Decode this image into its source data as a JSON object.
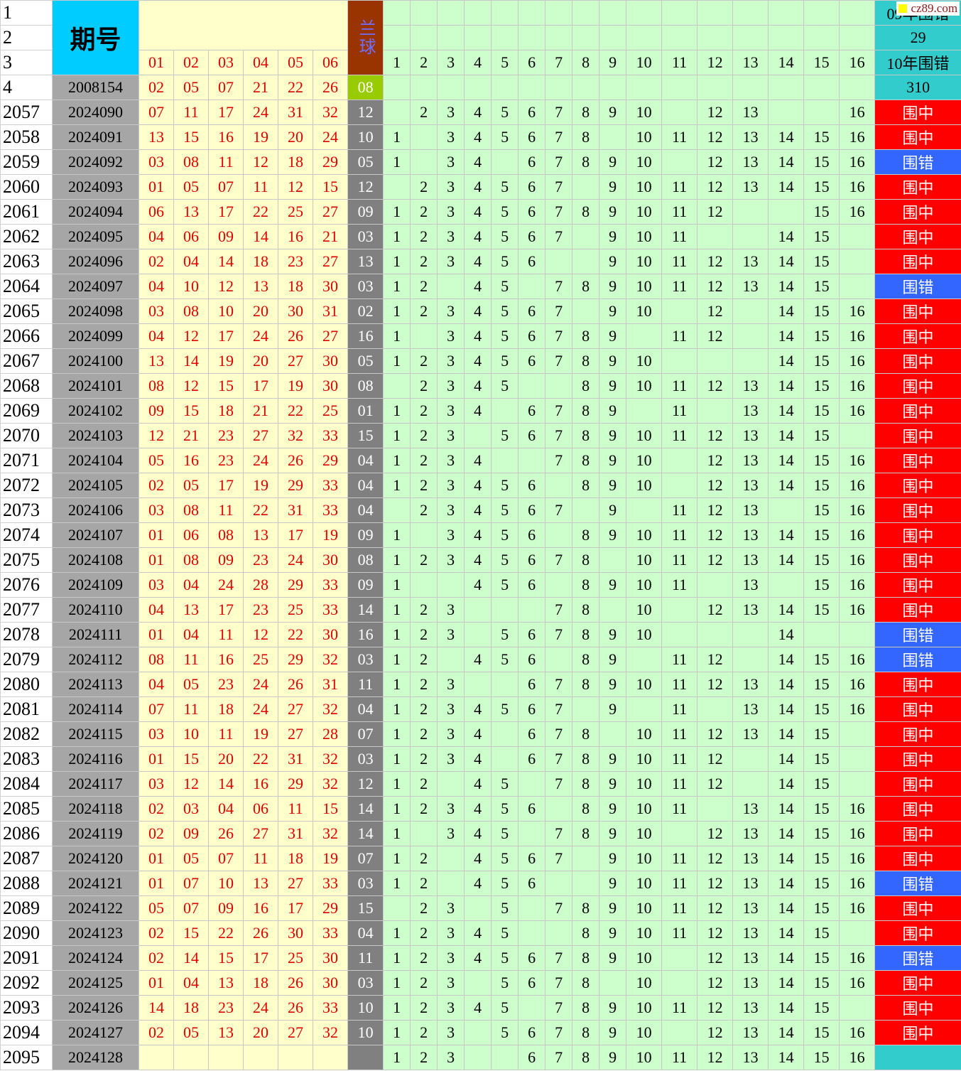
{
  "header": {
    "row_numbers": [
      1,
      2,
      3,
      4
    ],
    "period_label": "期号",
    "blue_label": "兰球",
    "red_columns": [
      "01",
      "02",
      "03",
      "04",
      "05",
      "06"
    ],
    "number_columns": [
      1,
      2,
      3,
      4,
      5,
      6,
      7,
      8,
      9,
      10,
      11,
      12,
      13,
      14,
      15,
      16
    ],
    "result_labels": [
      "09年围错",
      29,
      "10年围错",
      310
    ],
    "watermark": "cz89.com"
  },
  "reference_row": {
    "period": "2008154",
    "reds": [
      "02",
      "05",
      "07",
      "21",
      "22",
      "26"
    ],
    "blue": "08"
  },
  "rows": [
    {
      "row": 2057,
      "period": "2024090",
      "reds": [
        "07",
        "11",
        "17",
        "24",
        "31",
        "32"
      ],
      "blue": "12",
      "numbers": [
        2,
        3,
        4,
        5,
        6,
        7,
        8,
        9,
        10,
        12,
        13,
        16
      ],
      "result": "围中",
      "result_color": "#ff0000"
    },
    {
      "row": 2058,
      "period": "2024091",
      "reds": [
        "13",
        "15",
        "16",
        "19",
        "20",
        "24"
      ],
      "blue": "10",
      "numbers": [
        1,
        3,
        4,
        5,
        6,
        7,
        8,
        10,
        11,
        12,
        13,
        14,
        15,
        16
      ],
      "result": "围中",
      "result_color": "#ff0000"
    },
    {
      "row": 2059,
      "period": "2024092",
      "reds": [
        "03",
        "08",
        "11",
        "12",
        "18",
        "29"
      ],
      "blue": "05",
      "numbers": [
        1,
        3,
        4,
        6,
        7,
        8,
        9,
        10,
        12,
        13,
        14,
        15,
        16
      ],
      "result": "围错",
      "result_color": "#3366ff"
    },
    {
      "row": 2060,
      "period": "2024093",
      "reds": [
        "01",
        "05",
        "07",
        "11",
        "12",
        "15"
      ],
      "blue": "12",
      "numbers": [
        2,
        3,
        4,
        5,
        6,
        7,
        9,
        10,
        11,
        12,
        13,
        14,
        15,
        16
      ],
      "result": "围中",
      "result_color": "#ff0000"
    },
    {
      "row": 2061,
      "period": "2024094",
      "reds": [
        "06",
        "13",
        "17",
        "22",
        "25",
        "27"
      ],
      "blue": "09",
      "numbers": [
        1,
        2,
        3,
        4,
        5,
        6,
        7,
        8,
        9,
        10,
        11,
        12,
        15,
        16
      ],
      "result": "围中",
      "result_color": "#ff0000"
    },
    {
      "row": 2062,
      "period": "2024095",
      "reds": [
        "04",
        "06",
        "09",
        "14",
        "16",
        "21"
      ],
      "blue": "03",
      "numbers": [
        1,
        2,
        3,
        4,
        5,
        6,
        7,
        9,
        10,
        11,
        14,
        15
      ],
      "result": "围中",
      "result_color": "#ff0000"
    },
    {
      "row": 2063,
      "period": "2024096",
      "reds": [
        "02",
        "04",
        "14",
        "18",
        "23",
        "27"
      ],
      "blue": "13",
      "numbers": [
        1,
        2,
        3,
        4,
        5,
        6,
        9,
        10,
        11,
        12,
        13,
        14,
        15
      ],
      "result": "围中",
      "result_color": "#ff0000"
    },
    {
      "row": 2064,
      "period": "2024097",
      "reds": [
        "04",
        "10",
        "12",
        "13",
        "18",
        "30"
      ],
      "blue": "03",
      "numbers": [
        1,
        2,
        4,
        5,
        7,
        8,
        9,
        10,
        11,
        12,
        13,
        14,
        15
      ],
      "result": "围错",
      "result_color": "#3366ff"
    },
    {
      "row": 2065,
      "period": "2024098",
      "reds": [
        "03",
        "08",
        "10",
        "20",
        "30",
        "31"
      ],
      "blue": "02",
      "numbers": [
        1,
        2,
        3,
        4,
        5,
        6,
        7,
        9,
        10,
        12,
        14,
        15,
        16
      ],
      "result": "围中",
      "result_color": "#ff0000"
    },
    {
      "row": 2066,
      "period": "2024099",
      "reds": [
        "04",
        "12",
        "17",
        "24",
        "26",
        "27"
      ],
      "blue": "16",
      "numbers": [
        1,
        3,
        4,
        5,
        6,
        7,
        8,
        9,
        11,
        12,
        14,
        15,
        16
      ],
      "result": "围中",
      "result_color": "#ff0000"
    },
    {
      "row": 2067,
      "period": "2024100",
      "reds": [
        "13",
        "14",
        "19",
        "20",
        "27",
        "30"
      ],
      "blue": "05",
      "numbers": [
        1,
        2,
        3,
        4,
        5,
        6,
        7,
        8,
        9,
        10,
        14,
        15,
        16
      ],
      "result": "围中",
      "result_color": "#ff0000"
    },
    {
      "row": 2068,
      "period": "2024101",
      "reds": [
        "08",
        "12",
        "15",
        "17",
        "19",
        "30"
      ],
      "blue": "08",
      "numbers": [
        2,
        3,
        4,
        5,
        8,
        9,
        10,
        11,
        12,
        13,
        14,
        15,
        16
      ],
      "result": "围中",
      "result_color": "#ff0000"
    },
    {
      "row": 2069,
      "period": "2024102",
      "reds": [
        "09",
        "15",
        "18",
        "21",
        "22",
        "25"
      ],
      "blue": "01",
      "numbers": [
        1,
        2,
        3,
        4,
        6,
        7,
        8,
        9,
        11,
        13,
        14,
        15,
        16
      ],
      "result": "围中",
      "result_color": "#ff0000"
    },
    {
      "row": 2070,
      "period": "2024103",
      "reds": [
        "12",
        "21",
        "23",
        "27",
        "32",
        "33"
      ],
      "blue": "15",
      "numbers": [
        1,
        2,
        3,
        5,
        6,
        7,
        8,
        9,
        10,
        11,
        12,
        13,
        14,
        15
      ],
      "result": "围中",
      "result_color": "#ff0000"
    },
    {
      "row": 2071,
      "period": "2024104",
      "reds": [
        "05",
        "16",
        "23",
        "24",
        "26",
        "29"
      ],
      "blue": "04",
      "numbers": [
        1,
        2,
        3,
        4,
        7,
        8,
        9,
        10,
        12,
        13,
        14,
        15,
        16
      ],
      "result": "围中",
      "result_color": "#ff0000"
    },
    {
      "row": 2072,
      "period": "2024105",
      "reds": [
        "02",
        "05",
        "17",
        "19",
        "29",
        "33"
      ],
      "blue": "04",
      "numbers": [
        1,
        2,
        3,
        4,
        5,
        6,
        8,
        9,
        10,
        12,
        13,
        14,
        15,
        16
      ],
      "result": "围中",
      "result_color": "#ff0000"
    },
    {
      "row": 2073,
      "period": "2024106",
      "reds": [
        "03",
        "08",
        "11",
        "22",
        "31",
        "33"
      ],
      "blue": "04",
      "numbers": [
        2,
        3,
        4,
        5,
        6,
        7,
        9,
        11,
        12,
        13,
        15,
        16
      ],
      "result": "围中",
      "result_color": "#ff0000"
    },
    {
      "row": 2074,
      "period": "2024107",
      "reds": [
        "01",
        "06",
        "08",
        "13",
        "17",
        "19"
      ],
      "blue": "09",
      "numbers": [
        1,
        3,
        4,
        5,
        6,
        8,
        9,
        10,
        11,
        12,
        13,
        14,
        15,
        16
      ],
      "result": "围中",
      "result_color": "#ff0000"
    },
    {
      "row": 2075,
      "period": "2024108",
      "reds": [
        "01",
        "08",
        "09",
        "23",
        "24",
        "30"
      ],
      "blue": "08",
      "numbers": [
        1,
        2,
        3,
        4,
        5,
        6,
        7,
        8,
        10,
        11,
        12,
        13,
        14,
        15,
        16
      ],
      "result": "围中",
      "result_color": "#ff0000"
    },
    {
      "row": 2076,
      "period": "2024109",
      "reds": [
        "03",
        "04",
        "24",
        "28",
        "29",
        "33"
      ],
      "blue": "09",
      "numbers": [
        1,
        4,
        5,
        6,
        8,
        9,
        10,
        11,
        13,
        15,
        16
      ],
      "result": "围中",
      "result_color": "#ff0000"
    },
    {
      "row": 2077,
      "period": "2024110",
      "reds": [
        "04",
        "13",
        "17",
        "23",
        "25",
        "33"
      ],
      "blue": "14",
      "numbers": [
        1,
        2,
        3,
        7,
        8,
        10,
        12,
        13,
        14,
        15,
        16
      ],
      "result": "围中",
      "result_color": "#ff0000"
    },
    {
      "row": 2078,
      "period": "2024111",
      "reds": [
        "01",
        "04",
        "11",
        "12",
        "22",
        "30"
      ],
      "blue": "16",
      "numbers": [
        1,
        2,
        3,
        5,
        6,
        7,
        8,
        9,
        10,
        14
      ],
      "result": "围错",
      "result_color": "#3366ff"
    },
    {
      "row": 2079,
      "period": "2024112",
      "reds": [
        "08",
        "11",
        "16",
        "25",
        "29",
        "32"
      ],
      "blue": "03",
      "numbers": [
        1,
        2,
        4,
        5,
        6,
        8,
        9,
        11,
        12,
        14,
        15,
        16
      ],
      "result": "围错",
      "result_color": "#3366ff"
    },
    {
      "row": 2080,
      "period": "2024113",
      "reds": [
        "04",
        "05",
        "23",
        "24",
        "26",
        "31"
      ],
      "blue": "11",
      "numbers": [
        1,
        2,
        3,
        6,
        7,
        8,
        9,
        10,
        11,
        12,
        13,
        14,
        15,
        16
      ],
      "result": "围中",
      "result_color": "#ff0000"
    },
    {
      "row": 2081,
      "period": "2024114",
      "reds": [
        "07",
        "11",
        "18",
        "24",
        "27",
        "32"
      ],
      "blue": "04",
      "numbers": [
        1,
        2,
        3,
        4,
        5,
        6,
        7,
        9,
        11,
        13,
        14,
        15,
        16
      ],
      "result": "围中",
      "result_color": "#ff0000"
    },
    {
      "row": 2082,
      "period": "2024115",
      "reds": [
        "03",
        "10",
        "11",
        "19",
        "27",
        "28"
      ],
      "blue": "07",
      "numbers": [
        1,
        2,
        3,
        4,
        6,
        7,
        8,
        10,
        11,
        12,
        13,
        14,
        15
      ],
      "result": "围中",
      "result_color": "#ff0000"
    },
    {
      "row": 2083,
      "period": "2024116",
      "reds": [
        "01",
        "15",
        "20",
        "22",
        "31",
        "32"
      ],
      "blue": "03",
      "numbers": [
        1,
        2,
        3,
        4,
        6,
        7,
        8,
        9,
        10,
        11,
        12,
        14,
        15
      ],
      "result": "围中",
      "result_color": "#ff0000"
    },
    {
      "row": 2084,
      "period": "2024117",
      "reds": [
        "03",
        "12",
        "14",
        "16",
        "29",
        "32"
      ],
      "blue": "12",
      "numbers": [
        1,
        2,
        4,
        5,
        7,
        8,
        9,
        10,
        11,
        12,
        14,
        15
      ],
      "result": "围中",
      "result_color": "#ff0000"
    },
    {
      "row": 2085,
      "period": "2024118",
      "reds": [
        "02",
        "03",
        "04",
        "06",
        "11",
        "15"
      ],
      "blue": "14",
      "numbers": [
        1,
        2,
        3,
        4,
        5,
        6,
        8,
        9,
        10,
        11,
        13,
        14,
        15,
        16
      ],
      "result": "围中",
      "result_color": "#ff0000"
    },
    {
      "row": 2086,
      "period": "2024119",
      "reds": [
        "02",
        "09",
        "26",
        "27",
        "31",
        "32"
      ],
      "blue": "14",
      "numbers": [
        1,
        3,
        4,
        5,
        7,
        8,
        9,
        10,
        12,
        13,
        14,
        15,
        16
      ],
      "result": "围中",
      "result_color": "#ff0000"
    },
    {
      "row": 2087,
      "period": "2024120",
      "reds": [
        "01",
        "05",
        "07",
        "11",
        "18",
        "19"
      ],
      "blue": "07",
      "numbers": [
        1,
        2,
        4,
        5,
        6,
        7,
        9,
        10,
        11,
        12,
        13,
        14,
        15,
        16
      ],
      "result": "围中",
      "result_color": "#ff0000"
    },
    {
      "row": 2088,
      "period": "2024121",
      "reds": [
        "01",
        "07",
        "10",
        "13",
        "27",
        "33"
      ],
      "blue": "03",
      "numbers": [
        1,
        2,
        4,
        5,
        6,
        9,
        10,
        11,
        12,
        13,
        14,
        15,
        16
      ],
      "result": "围错",
      "result_color": "#3366ff"
    },
    {
      "row": 2089,
      "period": "2024122",
      "reds": [
        "05",
        "07",
        "09",
        "16",
        "17",
        "29"
      ],
      "blue": "15",
      "numbers": [
        2,
        3,
        5,
        7,
        8,
        9,
        10,
        11,
        12,
        13,
        14,
        15,
        16
      ],
      "result": "围中",
      "result_color": "#ff0000"
    },
    {
      "row": 2090,
      "period": "2024123",
      "reds": [
        "02",
        "15",
        "22",
        "26",
        "30",
        "33"
      ],
      "blue": "04",
      "numbers": [
        1,
        2,
        3,
        4,
        5,
        8,
        9,
        10,
        11,
        12,
        13,
        14,
        15
      ],
      "result": "围中",
      "result_color": "#ff0000"
    },
    {
      "row": 2091,
      "period": "2024124",
      "reds": [
        "02",
        "14",
        "15",
        "17",
        "25",
        "30"
      ],
      "blue": "11",
      "numbers": [
        1,
        2,
        3,
        4,
        5,
        6,
        7,
        8,
        9,
        10,
        12,
        13,
        14,
        15,
        16
      ],
      "result": "围错",
      "result_color": "#3366ff"
    },
    {
      "row": 2092,
      "period": "2024125",
      "reds": [
        "01",
        "04",
        "13",
        "18",
        "26",
        "30"
      ],
      "blue": "03",
      "numbers": [
        1,
        2,
        3,
        5,
        6,
        7,
        8,
        10,
        12,
        13,
        14,
        15,
        16
      ],
      "result": "围中",
      "result_color": "#ff0000"
    },
    {
      "row": 2093,
      "period": "2024126",
      "reds": [
        "14",
        "18",
        "23",
        "24",
        "26",
        "33"
      ],
      "blue": "10",
      "numbers": [
        1,
        2,
        3,
        4,
        5,
        7,
        8,
        9,
        10,
        11,
        12,
        13,
        14,
        15
      ],
      "result": "围中",
      "result_color": "#ff0000"
    },
    {
      "row": 2094,
      "period": "2024127",
      "reds": [
        "02",
        "05",
        "13",
        "20",
        "27",
        "32"
      ],
      "blue": "10",
      "numbers": [
        1,
        2,
        3,
        5,
        6,
        7,
        8,
        9,
        10,
        12,
        13,
        14,
        15,
        16
      ],
      "result": "围中",
      "result_color": "#ff0000"
    },
    {
      "row": 2095,
      "period": "2024128",
      "reds": [
        null,
        null,
        null,
        null,
        null,
        null
      ],
      "blue": null,
      "numbers": [
        1,
        2,
        3,
        6,
        7,
        8,
        9,
        10,
        11,
        12,
        13,
        14,
        15,
        16
      ],
      "result": null,
      "result_color": "#33cccc"
    }
  ]
}
